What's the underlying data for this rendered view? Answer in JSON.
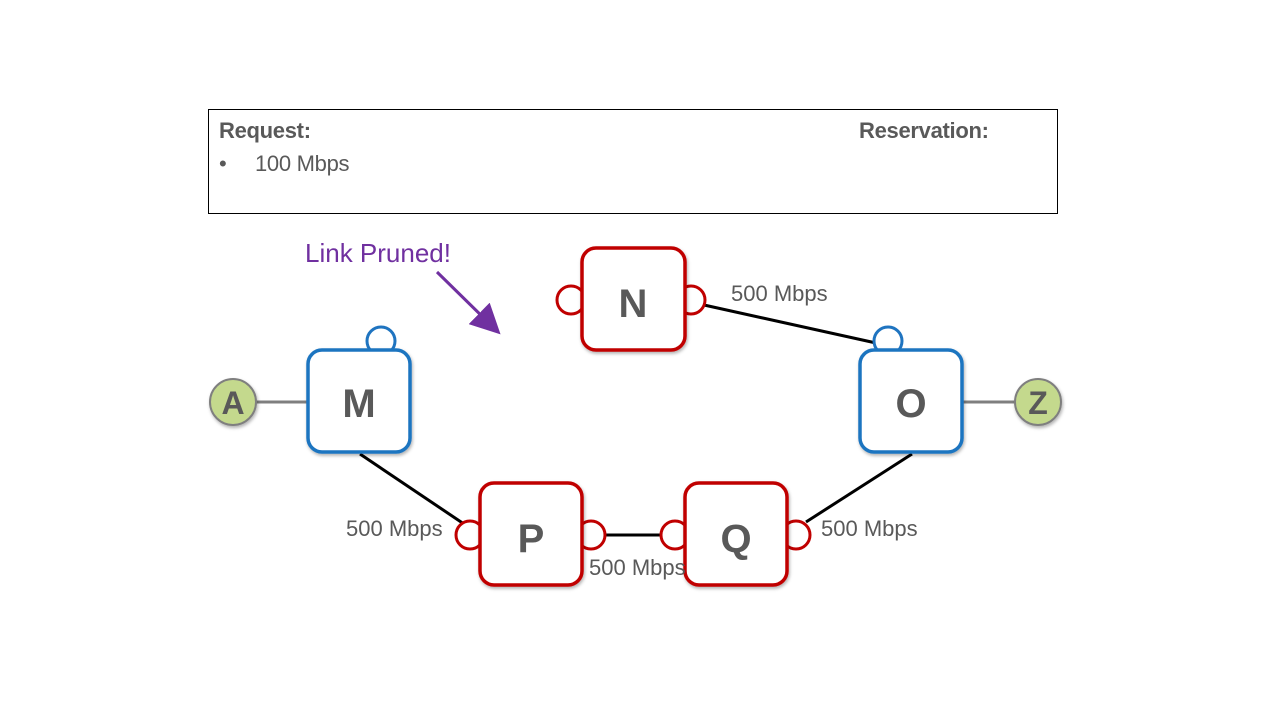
{
  "panel": {
    "request_title": "Request:",
    "request_items": [
      "100 Mbps"
    ],
    "bullet": "•",
    "reservation_title": "Reservation:"
  },
  "annotation": "Link Pruned!",
  "nodes": {
    "m": "M",
    "n": "N",
    "o": "O",
    "p": "P",
    "q": "Q"
  },
  "endpoints": {
    "a": "A",
    "z": "Z"
  },
  "links": {
    "n_o": "500 Mbps",
    "m_p": "500 Mbps",
    "p_q": "500 Mbps",
    "q_o": "500 Mbps"
  },
  "colors": {
    "blue_node": "#1f74c0",
    "red_node": "#c00000",
    "endpoint_fill": "#c4d98d",
    "annotation": "#7030a0"
  }
}
